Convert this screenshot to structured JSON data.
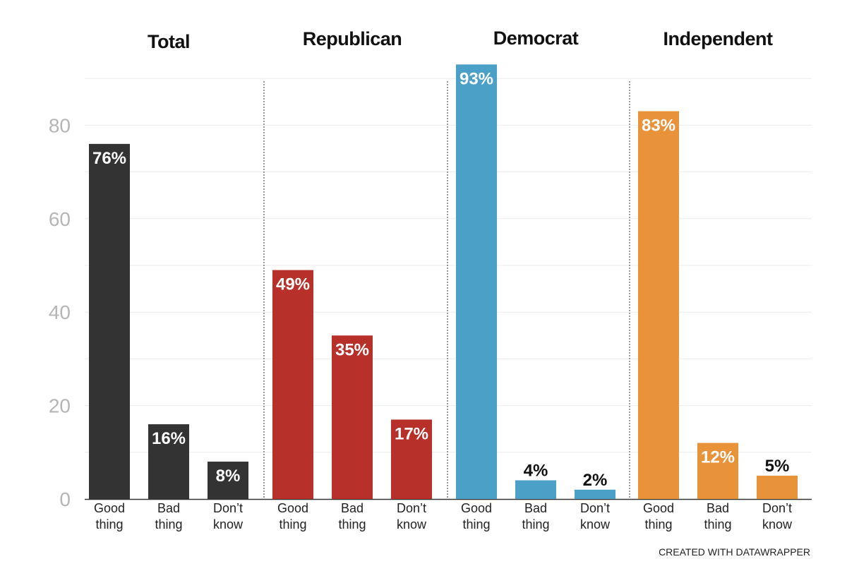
{
  "chart_data": [
    {
      "type": "bar",
      "title": "Total",
      "categories": [
        "Good thing",
        "Bad thing",
        "Don’t know"
      ],
      "values": [
        76,
        16,
        8
      ],
      "value_labels": [
        "76%",
        "16%",
        "8%"
      ],
      "color": "#333333",
      "ylim": [
        0,
        90
      ],
      "yticks": [
        0,
        20,
        40,
        60,
        80
      ],
      "grid": true
    },
    {
      "type": "bar",
      "title": "Republican",
      "categories": [
        "Good thing",
        "Bad thing",
        "Don’t know"
      ],
      "values": [
        49,
        35,
        17
      ],
      "value_labels": [
        "49%",
        "35%",
        "17%"
      ],
      "color": "#b8302a",
      "ylim": [
        0,
        90
      ],
      "grid": true
    },
    {
      "type": "bar",
      "title": "Democrat",
      "categories": [
        "Good thing",
        "Bad thing",
        "Don’t know"
      ],
      "values": [
        93,
        4,
        2
      ],
      "value_labels": [
        "93%",
        "4%",
        "2%"
      ],
      "color": "#4ba0c8",
      "ylim": [
        0,
        90
      ],
      "grid": true
    },
    {
      "type": "bar",
      "title": "Independent",
      "categories": [
        "Good thing",
        "Bad thing",
        "Don’t know"
      ],
      "values": [
        83,
        12,
        5
      ],
      "value_labels": [
        "83%",
        "12%",
        "5%"
      ],
      "color": "#e8923a",
      "ylim": [
        0,
        90
      ],
      "grid": true
    }
  ],
  "credit": "CREATED WITH DATAWRAPPER"
}
